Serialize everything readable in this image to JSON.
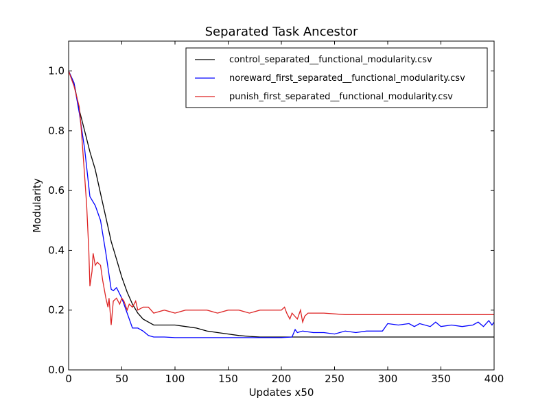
{
  "chart_data": {
    "type": "line",
    "title": "Separated Task Ancestor",
    "xlabel": "Updates x50",
    "ylabel": "Modularity",
    "xlim": [
      0,
      400
    ],
    "ylim": [
      0.0,
      1.1
    ],
    "xticks": [
      0,
      50,
      100,
      150,
      200,
      250,
      300,
      350,
      400
    ],
    "yticks": [
      0.0,
      0.2,
      0.4,
      0.6,
      0.8,
      1.0
    ],
    "xtick_labels": [
      "0",
      "50",
      "100",
      "150",
      "200",
      "250",
      "300",
      "350",
      "400"
    ],
    "ytick_labels": [
      "0.0",
      "0.2",
      "0.4",
      "0.6",
      "0.8",
      "1.0"
    ],
    "grid": false,
    "legend_position": "top-right",
    "series": [
      {
        "name": "control_separated__functional_modularity.csv",
        "color": "#000000",
        "x": [
          0,
          5,
          10,
          15,
          20,
          25,
          30,
          35,
          40,
          45,
          50,
          55,
          60,
          65,
          70,
          75,
          80,
          90,
          100,
          110,
          120,
          130,
          140,
          150,
          160,
          170,
          180,
          190,
          200,
          220,
          250,
          300,
          350,
          400
        ],
        "y": [
          1.0,
          0.96,
          0.87,
          0.8,
          0.73,
          0.67,
          0.59,
          0.51,
          0.43,
          0.37,
          0.31,
          0.26,
          0.22,
          0.19,
          0.17,
          0.16,
          0.15,
          0.15,
          0.15,
          0.145,
          0.14,
          0.13,
          0.125,
          0.12,
          0.115,
          0.112,
          0.11,
          0.11,
          0.11,
          0.11,
          0.11,
          0.11,
          0.11,
          0.11
        ]
      },
      {
        "name": "noreward_first_separated__functional_modularity.csv",
        "color": "#0000ff",
        "x": [
          0,
          5,
          10,
          15,
          20,
          25,
          30,
          35,
          40,
          42,
          45,
          50,
          55,
          60,
          65,
          70,
          75,
          80,
          90,
          100,
          120,
          150,
          180,
          200,
          210,
          213,
          215,
          220,
          230,
          240,
          250,
          260,
          270,
          280,
          290,
          295,
          300,
          310,
          320,
          325,
          330,
          340,
          345,
          350,
          360,
          370,
          380,
          385,
          390,
          395,
          398,
          400
        ],
        "y": [
          1.0,
          0.96,
          0.86,
          0.74,
          0.58,
          0.55,
          0.5,
          0.39,
          0.27,
          0.265,
          0.275,
          0.24,
          0.19,
          0.14,
          0.14,
          0.13,
          0.115,
          0.11,
          0.11,
          0.108,
          0.108,
          0.108,
          0.108,
          0.108,
          0.11,
          0.135,
          0.125,
          0.13,
          0.125,
          0.125,
          0.12,
          0.13,
          0.125,
          0.13,
          0.13,
          0.13,
          0.155,
          0.15,
          0.155,
          0.145,
          0.155,
          0.145,
          0.16,
          0.145,
          0.15,
          0.145,
          0.15,
          0.16,
          0.145,
          0.165,
          0.15,
          0.16
        ]
      },
      {
        "name": "punish_first_separated__functional_modularity.csv",
        "color": "#dd2222",
        "x": [
          0,
          5,
          10,
          12,
          15,
          17,
          19,
          20,
          22,
          23,
          25,
          27,
          30,
          32,
          35,
          37,
          38,
          40,
          42,
          45,
          48,
          50,
          52,
          55,
          57,
          60,
          63,
          65,
          70,
          75,
          80,
          90,
          100,
          110,
          120,
          130,
          140,
          150,
          160,
          170,
          180,
          190,
          200,
          203,
          205,
          208,
          210,
          215,
          218,
          220,
          222,
          225,
          240,
          260,
          280,
          300,
          320,
          350,
          380,
          400
        ],
        "y": [
          1.0,
          0.95,
          0.88,
          0.8,
          0.65,
          0.55,
          0.4,
          0.28,
          0.33,
          0.39,
          0.35,
          0.36,
          0.35,
          0.3,
          0.24,
          0.21,
          0.24,
          0.15,
          0.23,
          0.24,
          0.22,
          0.24,
          0.23,
          0.2,
          0.22,
          0.21,
          0.23,
          0.2,
          0.21,
          0.21,
          0.19,
          0.2,
          0.19,
          0.2,
          0.2,
          0.2,
          0.19,
          0.2,
          0.2,
          0.19,
          0.2,
          0.2,
          0.2,
          0.21,
          0.19,
          0.17,
          0.19,
          0.17,
          0.2,
          0.16,
          0.18,
          0.19,
          0.19,
          0.185,
          0.185,
          0.185,
          0.185,
          0.185,
          0.185,
          0.185
        ]
      }
    ]
  }
}
